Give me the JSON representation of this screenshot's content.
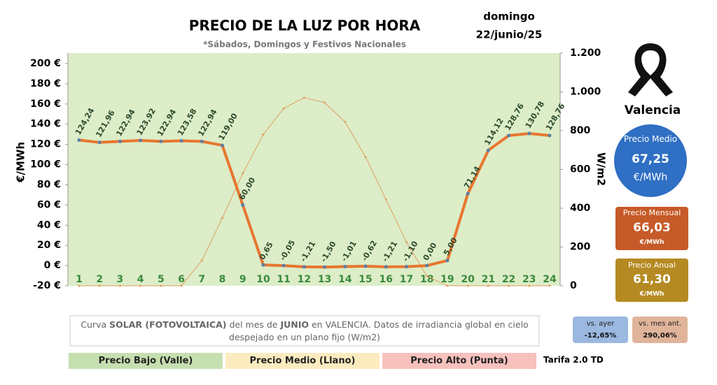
{
  "chart_data": {
    "type": "line",
    "title": "PRECIO DE LA LUZ POR HORA",
    "subtitle": "*Sábados, Domingos y Festivos Nacionales",
    "date_day": "domingo",
    "date": "22/junio/25",
    "y_label": "€/MWh",
    "y2_label": "W/m2",
    "categories": [
      "1",
      "2",
      "3",
      "4",
      "5",
      "6",
      "7",
      "8",
      "9",
      "10",
      "11",
      "12",
      "13",
      "14",
      "15",
      "16",
      "17",
      "18",
      "19",
      "20",
      "21",
      "22",
      "23",
      "24"
    ],
    "series": [
      {
        "color": "#e8762f",
        "values": [
          124.24,
          121.96,
          122.94,
          123.92,
          122.94,
          123.58,
          122.94,
          119.0,
          60.0,
          0.65,
          -0.05,
          -1.21,
          -1.5,
          -1.01,
          -0.62,
          -1.21,
          -1.1,
          0.0,
          5.0,
          71.14,
          114.12,
          128.76,
          130.78,
          128.76
        ],
        "value_labels": [
          "124,24",
          "121,96",
          "122,94",
          "123,92",
          "122,94",
          "123,58",
          "122,94",
          "119,00",
          "60,00",
          "0,65",
          "-0,05",
          "-1,21",
          "-1,50",
          "-1,01",
          "-0,62",
          "-1,21",
          "-1,10",
          "0,00",
          "5,00",
          "71,14",
          "114,12",
          "128,76",
          "130,78",
          "128,76"
        ]
      },
      {
        "color": "#e0a060",
        "axis": "y2",
        "values": [
          0,
          0,
          0,
          0,
          0,
          0,
          130,
          350,
          580,
          780,
          915,
          970,
          945,
          845,
          665,
          445,
          225,
          50,
          0,
          0,
          0,
          0,
          0,
          0
        ]
      }
    ],
    "ylim": [
      -20,
      200
    ],
    "yticks": [
      {
        "value": -20,
        "label": "-20 €"
      },
      {
        "value": 0,
        "label": "0 €"
      },
      {
        "value": 20,
        "label": "20 €"
      },
      {
        "value": 40,
        "label": "40 €"
      },
      {
        "value": 60,
        "label": "60 €"
      },
      {
        "value": 80,
        "label": "80 €"
      },
      {
        "value": 100,
        "label": "100 €"
      },
      {
        "value": 120,
        "label": "120 €"
      },
      {
        "value": 140,
        "label": "140 €"
      },
      {
        "value": 160,
        "label": "160 €"
      },
      {
        "value": 180,
        "label": "180 €"
      },
      {
        "value": 200,
        "label": "200 €"
      }
    ],
    "y2lim": [
      0,
      1200
    ],
    "y2ticks": [
      0,
      200,
      400,
      600,
      800,
      {
        "value": 1000,
        "label": "1.000"
      },
      {
        "value": 1200,
        "label": "1.200"
      }
    ]
  },
  "panel": {
    "city": "Valencia",
    "medio": {
      "label": "Precio Medio",
      "value": "67,25",
      "unit": "€/MWh"
    },
    "mensual": {
      "label": "Precio Mensual",
      "value": "66,03",
      "unit": "€/MWh"
    },
    "anual": {
      "label": "Precio Anual",
      "value": "61,30",
      "unit": "€/MWh"
    },
    "vs_ayer": {
      "label": "vs. ayer",
      "value": "-12,65%"
    },
    "vs_mes": {
      "label": "vs. mes ant.",
      "value": "290,06%"
    }
  },
  "note": [
    "Curva ",
    "SOLAR (FOTOVOLTAICA)",
    " del mes de ",
    "JUNIO",
    " en VALENCIA. Datos de irradiancia global en cielo despejado en un plano fijo (W/m2)"
  ],
  "tariff_legend": [
    "Precio Bajo (Valle)",
    "Precio Medio (Llano)",
    "Precio Alto (Punta)"
  ],
  "tariff": "Tarifa 2.0 TD"
}
